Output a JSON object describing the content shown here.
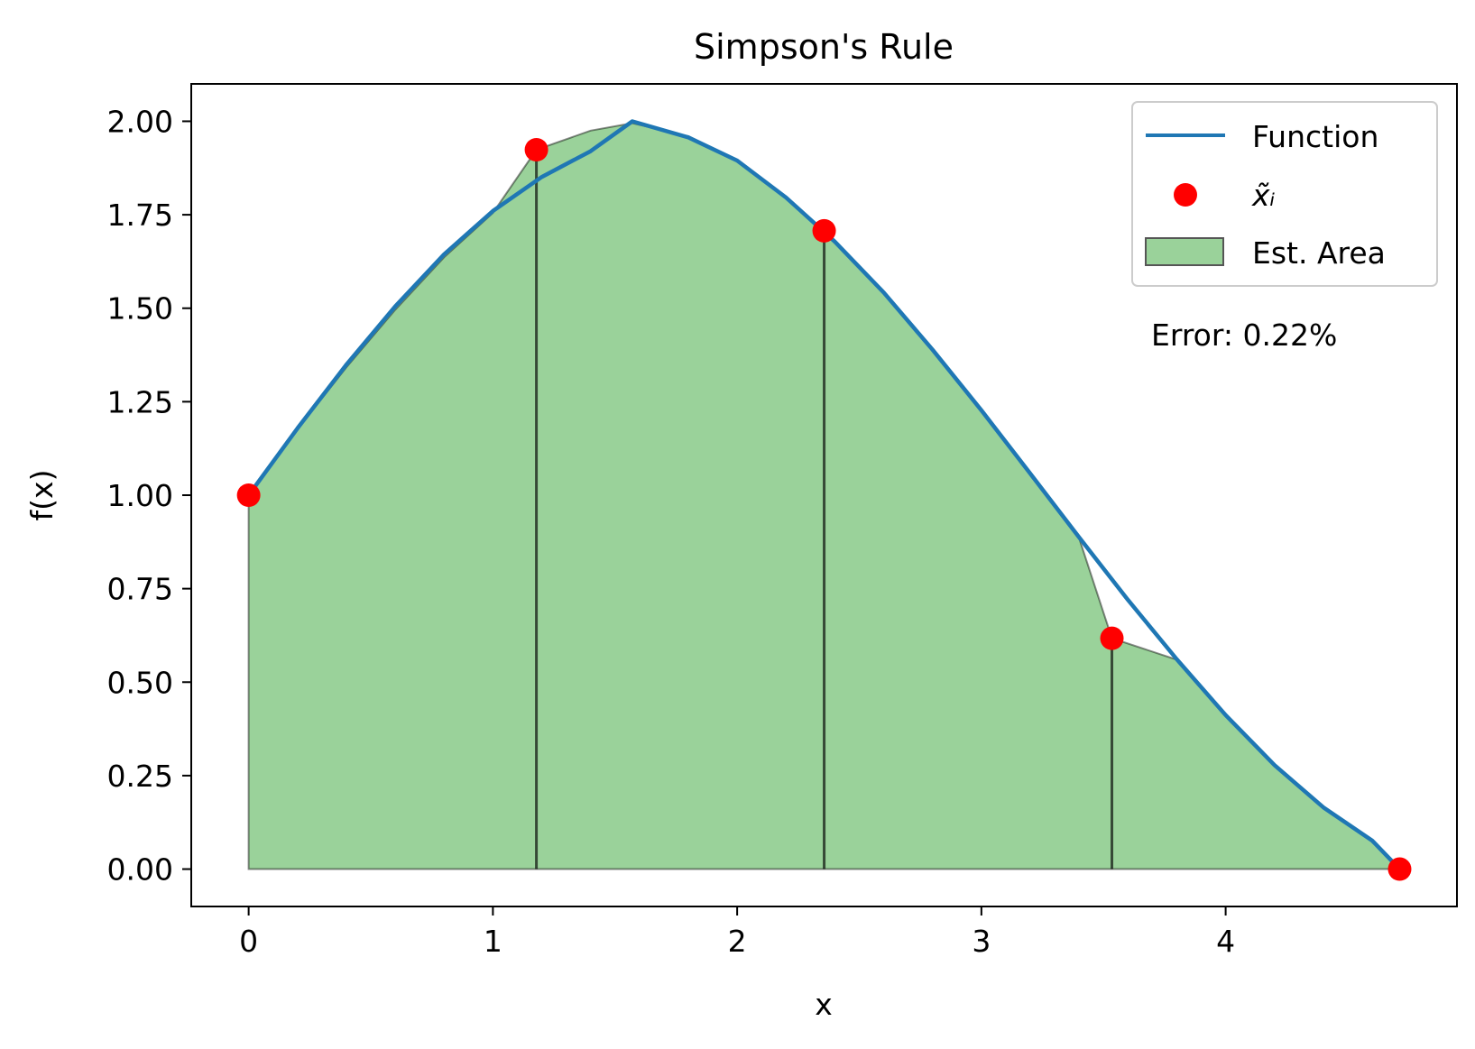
{
  "chart_data": {
    "type": "line",
    "title": "Simpson's Rule",
    "xlabel": "x",
    "ylabel": "f(x)",
    "xlim": [
      -0.235,
      4.947
    ],
    "ylim": [
      -0.1,
      2.1
    ],
    "x_ticks": [
      0,
      1,
      2,
      3,
      4
    ],
    "x_tick_labels": [
      "0",
      "1",
      "2",
      "3",
      "4"
    ],
    "y_ticks": [
      0.0,
      0.25,
      0.5,
      0.75,
      1.0,
      1.25,
      1.5,
      1.75,
      2.0
    ],
    "y_tick_labels": [
      "0.00",
      "0.25",
      "0.50",
      "0.75",
      "1.00",
      "1.25",
      "1.50",
      "1.75",
      "2.00"
    ],
    "grid": false,
    "legend_position": "top-right",
    "annotation": "Error: 0.22%",
    "function_curve": {
      "name": "Function",
      "color": "#1f77b4",
      "x": [
        0.0,
        0.2,
        0.4,
        0.6,
        0.8,
        1.0,
        1.2,
        1.4,
        1.5708,
        1.8,
        2.0,
        2.2,
        2.4,
        2.6,
        2.8,
        3.0,
        3.2,
        3.4,
        3.6,
        3.8,
        4.0,
        4.2,
        4.4,
        4.6,
        4.7124
      ],
      "y": [
        1.0,
        1.179,
        1.349,
        1.505,
        1.644,
        1.76,
        1.851,
        1.92,
        2.0,
        1.957,
        1.895,
        1.796,
        1.678,
        1.542,
        1.389,
        1.227,
        1.058,
        0.887,
        0.72,
        0.561,
        0.412,
        0.278,
        0.165,
        0.076,
        0.0
      ]
    },
    "sample_points": {
      "name": "x̃ᵢ",
      "color": "#ff0000",
      "x": [
        0.0,
        1.1781,
        2.3562,
        3.5343,
        4.7124
      ],
      "y": [
        1.0,
        1.9239,
        1.7071,
        0.6173,
        0.0
      ]
    },
    "estimated_area": {
      "name": "Est. Area",
      "color": "#2ca02c",
      "x": [
        0.0,
        0.2,
        0.4,
        0.6,
        0.8,
        1.0,
        1.1781,
        1.4,
        1.5708,
        1.8,
        2.0,
        2.2,
        2.3562,
        2.6,
        2.8,
        3.0,
        3.2,
        3.4,
        3.5343,
        3.8,
        4.0,
        4.2,
        4.4,
        4.6,
        4.7124
      ],
      "y": [
        1.0,
        1.176,
        1.342,
        1.496,
        1.636,
        1.755,
        1.9239,
        1.975,
        1.995,
        1.96,
        1.893,
        1.795,
        1.7071,
        1.54,
        1.387,
        1.225,
        1.057,
        0.885,
        0.6173,
        0.56,
        0.411,
        0.277,
        0.164,
        0.076,
        0.0
      ],
      "divider_x": [
        1.1781,
        2.3562,
        3.5343
      ]
    }
  }
}
